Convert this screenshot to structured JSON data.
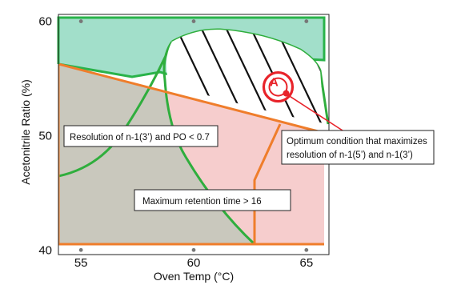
{
  "chart_data": {
    "type": "region_map",
    "xlabel": "Oven Temp (°C)",
    "ylabel": "Acetonitrile Ratio (%)",
    "x_ticks": [
      55,
      60,
      65
    ],
    "y_ticks": [
      40,
      50,
      60
    ],
    "xlim": [
      54,
      66
    ],
    "ylim": [
      39.6,
      60.6
    ],
    "grid_points": [
      {
        "x": 55,
        "y": 40
      },
      {
        "x": 60,
        "y": 40
      },
      {
        "x": 65,
        "y": 40
      },
      {
        "x": 55,
        "y": 60
      },
      {
        "x": 60,
        "y": 60
      },
      {
        "x": 65,
        "y": 60
      }
    ],
    "regions": [
      {
        "id": "resolution-3prime",
        "label": "Resolution of n-1(3’) and PO < 0.7",
        "fill": "#9fdcc7",
        "stroke": "#29b34a",
        "boundary": [
          [
            54,
            61.3
          ],
          [
            66,
            61.3
          ],
          [
            66,
            56.7
          ],
          [
            62.6,
            56.9
          ],
          [
            62.2,
            56.5
          ],
          [
            62.0,
            56.2
          ],
          [
            59.2,
            55.6
          ],
          [
            54,
            57.5
          ]
        ]
      },
      {
        "id": "retention-time",
        "label": "Maximum retention time > 16",
        "fill": "#f5cccc",
        "stroke": "#ef7d2b",
        "boundary": [
          [
            54,
            57.4
          ],
          [
            66,
            51.1
          ],
          [
            66,
            39.6
          ],
          [
            54,
            39.6
          ]
        ]
      },
      {
        "id": "overlap",
        "label": "",
        "fill": "#c7c7bd",
        "stroke": "#2fae3d",
        "boundary": [
          [
            54,
            57.4
          ],
          [
            59.3,
            54.3
          ],
          [
            56.5,
            48
          ],
          [
            54.5,
            40
          ]
        ]
      },
      {
        "id": "resolution-5prime",
        "label": "",
        "fill": "#ffffff",
        "stroke": "#29b34a",
        "hatched": true,
        "hatch_color": "#111111"
      }
    ],
    "optimum": {
      "marker": "A",
      "x": 64.1,
      "y": 53.7,
      "annotation": "Optimum condition that maximizes resolution of n-1(5’) and n-1(3’)"
    },
    "colors": {
      "green_edge": "#29b34a",
      "orange_edge": "#ef7d2b",
      "marker_red": "#e8232a"
    }
  }
}
